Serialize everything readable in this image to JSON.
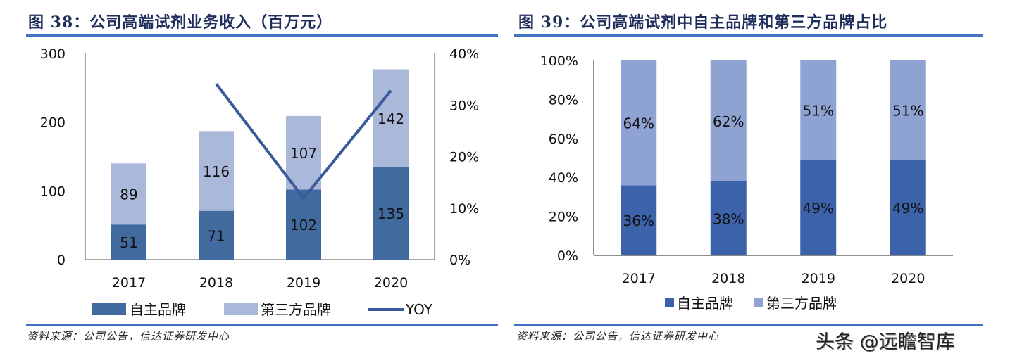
{
  "left": {
    "title": "图 38：公司高端试剂业务收入（百万元）",
    "source": "资料来源：公司公告，信达证券研发中心"
  },
  "right": {
    "title": "图 39：公司高端试剂中自主品牌和第三方品牌占比",
    "source": "资料来源：公司公告，信达证券研发中心"
  },
  "watermark": "头条 @远瞻智库",
  "colors": {
    "title": "#1f2d5c",
    "rule": "#4472c4",
    "left_own": "#416b9e",
    "left_third": "#aab9d9",
    "yoy_line": "#3a5a9a",
    "right_own": "#3c63aa",
    "right_third": "#8fa3d3",
    "axis": "#888888"
  },
  "chart_data": [
    {
      "type": "bar",
      "stacked": true,
      "title": "图 38：公司高端试剂业务收入（百万元）",
      "categories": [
        "2017",
        "2018",
        "2019",
        "2020"
      ],
      "series": [
        {
          "name": "自主品牌",
          "values": [
            51,
            71,
            102,
            135
          ],
          "labels": [
            "51",
            "71",
            "102",
            "135"
          ]
        },
        {
          "name": "第三方品牌",
          "values": [
            89,
            116,
            107,
            142
          ],
          "labels": [
            "89",
            "116",
            "107",
            "142"
          ]
        }
      ],
      "line_series": {
        "name": "YOY",
        "axis": "secondary",
        "values": [
          null,
          34.1,
          11.9,
          32.8
        ]
      },
      "ylim": [
        0,
        300
      ],
      "yticks": [
        "0",
        "100",
        "200",
        "300"
      ],
      "ytick_values": [
        0,
        100,
        200,
        300
      ],
      "y2lim": [
        0,
        40
      ],
      "y2ticks": [
        "0%",
        "10%",
        "20%",
        "30%",
        "40%"
      ],
      "y2tick_values": [
        0,
        10,
        20,
        30,
        40
      ],
      "legend": [
        "自主品牌",
        "第三方品牌",
        "YOY"
      ],
      "legend_position": "bottom",
      "grid": false
    },
    {
      "type": "bar",
      "stacked": true,
      "title": "图 39：公司高端试剂中自主品牌和第三方品牌占比",
      "categories": [
        "2017",
        "2018",
        "2019",
        "2020"
      ],
      "series": [
        {
          "name": "自主品牌",
          "values": [
            36,
            38,
            49,
            49
          ],
          "labels": [
            "36%",
            "38%",
            "49%",
            "49%"
          ]
        },
        {
          "name": "第三方品牌",
          "values": [
            64,
            62,
            51,
            51
          ],
          "labels": [
            "64%",
            "62%",
            "51%",
            "51%"
          ]
        }
      ],
      "ylim": [
        0,
        100
      ],
      "yticks": [
        "0%",
        "20%",
        "40%",
        "60%",
        "80%",
        "100%"
      ],
      "ytick_values": [
        0,
        20,
        40,
        60,
        80,
        100
      ],
      "legend": [
        "自主品牌",
        "第三方品牌"
      ],
      "legend_position": "bottom",
      "grid": false
    }
  ]
}
